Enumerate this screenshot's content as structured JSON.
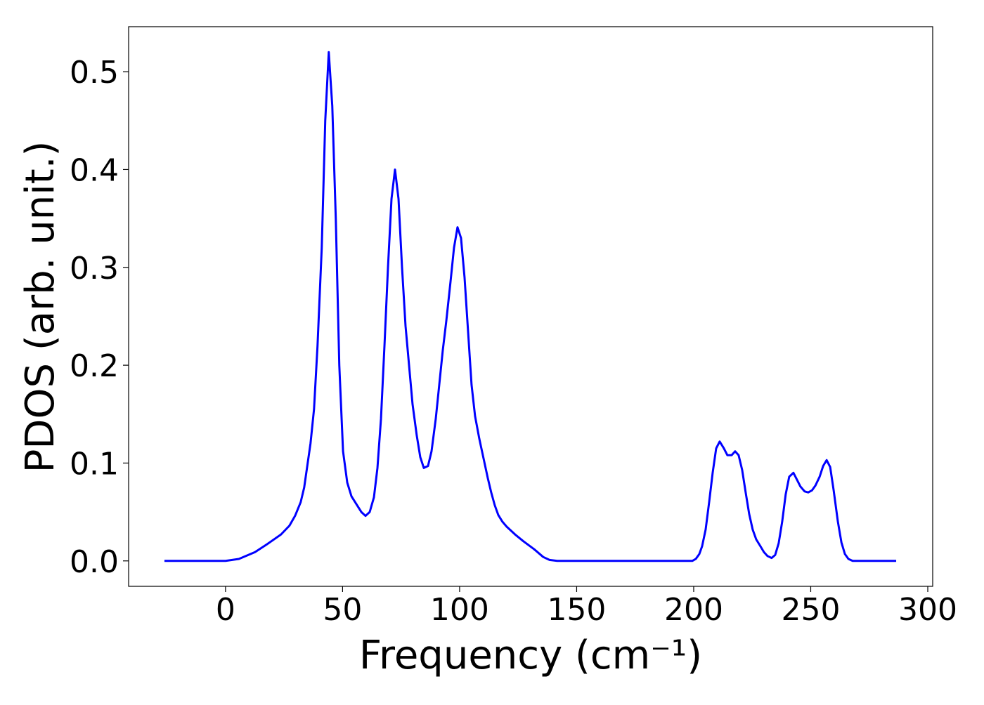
{
  "chart_data": {
    "type": "line",
    "xlabel": "Frequency (cm⁻¹)",
    "ylabel": "PDOS (arb. unit.)",
    "x": [
      -26.1,
      0,
      5.7,
      12.6,
      17.7,
      23.7,
      27.3,
      29.7,
      32.1,
      33.6,
      34.8,
      36.3,
      37.8,
      39.3,
      41.1,
      42.6,
      44.1,
      45.6,
      47.1,
      48.6,
      50.2,
      52.0,
      53.8,
      55.9,
      58.0,
      59.8,
      61.6,
      63.4,
      64.9,
      66.4,
      67.9,
      69.4,
      70.9,
      72.4,
      73.9,
      75.4,
      76.9,
      78.4,
      79.9,
      81.7,
      83.2,
      84.7,
      86.5,
      88.0,
      89.8,
      91.3,
      92.8,
      94.3,
      96.1,
      97.6,
      99.1,
      100.6,
      102.1,
      103.6,
      105.1,
      106.6,
      108.4,
      110.2,
      112.0,
      113.5,
      115.0,
      116.5,
      118.3,
      120.1,
      123.7,
      127.3,
      131.8,
      135.7,
      138.4,
      141.7,
      199.4,
      200.9,
      202.4,
      203.6,
      205.1,
      206.6,
      208.1,
      209.6,
      211.1,
      212.9,
      214.4,
      216.2,
      217.7,
      219.2,
      220.7,
      222.2,
      223.7,
      225.2,
      226.7,
      228.5,
      230.0,
      231.5,
      233.3,
      234.8,
      236.3,
      237.8,
      239.3,
      240.8,
      242.6,
      244.1,
      245.6,
      247.4,
      248.9,
      250.5,
      252.0,
      253.8,
      255.3,
      256.8,
      258.3,
      259.8,
      261.6,
      263.1,
      264.6,
      266.1,
      267.9,
      286.5
    ],
    "series": [
      {
        "color": "#0000ff",
        "values": [
          0,
          0,
          0.002,
          0.009,
          0.017,
          0.027,
          0.036,
          0.046,
          0.06,
          0.075,
          0.095,
          0.12,
          0.155,
          0.22,
          0.32,
          0.45,
          0.52,
          0.465,
          0.35,
          0.2,
          0.112,
          0.08,
          0.066,
          0.058,
          0.05,
          0.046,
          0.05,
          0.065,
          0.095,
          0.145,
          0.22,
          0.3,
          0.37,
          0.4,
          0.37,
          0.3,
          0.24,
          0.2,
          0.16,
          0.128,
          0.106,
          0.095,
          0.097,
          0.112,
          0.145,
          0.18,
          0.215,
          0.245,
          0.285,
          0.32,
          0.341,
          0.33,
          0.29,
          0.235,
          0.18,
          0.148,
          0.125,
          0.105,
          0.085,
          0.07,
          0.057,
          0.047,
          0.04,
          0.035,
          0.027,
          0.02,
          0.012,
          0.004,
          0.001,
          0,
          0,
          0.002,
          0.007,
          0.015,
          0.032,
          0.06,
          0.09,
          0.115,
          0.122,
          0.115,
          0.108,
          0.108,
          0.112,
          0.108,
          0.093,
          0.07,
          0.048,
          0.032,
          0.022,
          0.015,
          0.009,
          0.005,
          0.003,
          0.006,
          0.018,
          0.04,
          0.068,
          0.086,
          0.09,
          0.083,
          0.076,
          0.071,
          0.07,
          0.072,
          0.077,
          0.086,
          0.097,
          0.103,
          0.096,
          0.072,
          0.04,
          0.019,
          0.007,
          0.002,
          0,
          0
        ]
      }
    ],
    "xlim": [
      -41.4,
      302.1
    ],
    "ylim": [
      -0.026,
      0.546
    ],
    "xticks": [
      0,
      50,
      100,
      150,
      200,
      250,
      300
    ],
    "yticks": [
      {
        "value": 0,
        "label": "0.0"
      },
      0.1,
      0.2,
      0.3,
      0.4,
      0.5
    ],
    "grid": false
  }
}
